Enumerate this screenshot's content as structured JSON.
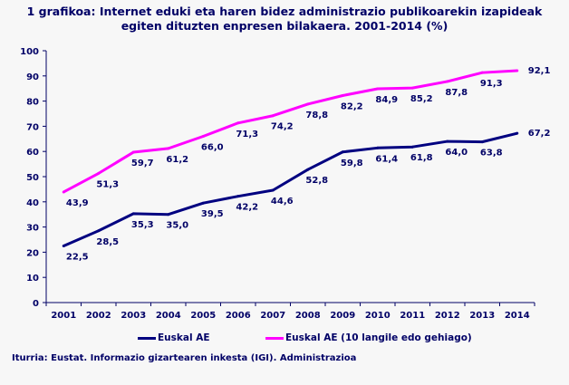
{
  "chart_data": {
    "type": "line",
    "title_line1": "1 grafikoa: Internet eduki eta haren bidez administrazio publikoarekin izapideak",
    "title_line2": "egiten dituzten enpresen bilakaera. 2001-2014 (%)",
    "categories": [
      "2001",
      "2002",
      "2003",
      "2004",
      "2005",
      "2006",
      "2007",
      "2008",
      "2009",
      "2010",
      "2011",
      "2012",
      "2013",
      "2014"
    ],
    "ylim": [
      0,
      100
    ],
    "yticks": [
      0,
      10,
      20,
      30,
      40,
      50,
      60,
      70,
      80,
      90,
      100
    ],
    "grid": false,
    "legend_position": "bottom",
    "series": [
      {
        "name": "Euskal AE",
        "color": "#000080",
        "values": [
          22.5,
          28.5,
          35.3,
          35.0,
          39.5,
          42.2,
          44.6,
          52.8,
          59.8,
          61.4,
          61.8,
          64.0,
          63.8,
          67.2
        ],
        "labels": [
          "22,5",
          "28,5",
          "35,3",
          "35,0",
          "39,5",
          "42,2",
          "44,6",
          "52,8",
          "59,8",
          "61,4",
          "61,8",
          "64,0",
          "63,8",
          "67,2"
        ]
      },
      {
        "name": "Euskal AE (10 langile edo gehiago)",
        "color": "#ff00ff",
        "values": [
          43.9,
          51.3,
          59.7,
          61.2,
          66.0,
          71.3,
          74.2,
          78.8,
          82.2,
          84.9,
          85.2,
          87.8,
          91.3,
          92.1
        ],
        "labels": [
          "43,9",
          "51,3",
          "59,7",
          "61,2",
          "66,0",
          "71,3",
          "74,2",
          "78,8",
          "82,2",
          "84,9",
          "85,2",
          "87,8",
          "91,3",
          "92,1"
        ]
      }
    ],
    "source": "Iturria: Eustat. Informazio gizartearen inkesta (IGI). Administrazioa"
  }
}
